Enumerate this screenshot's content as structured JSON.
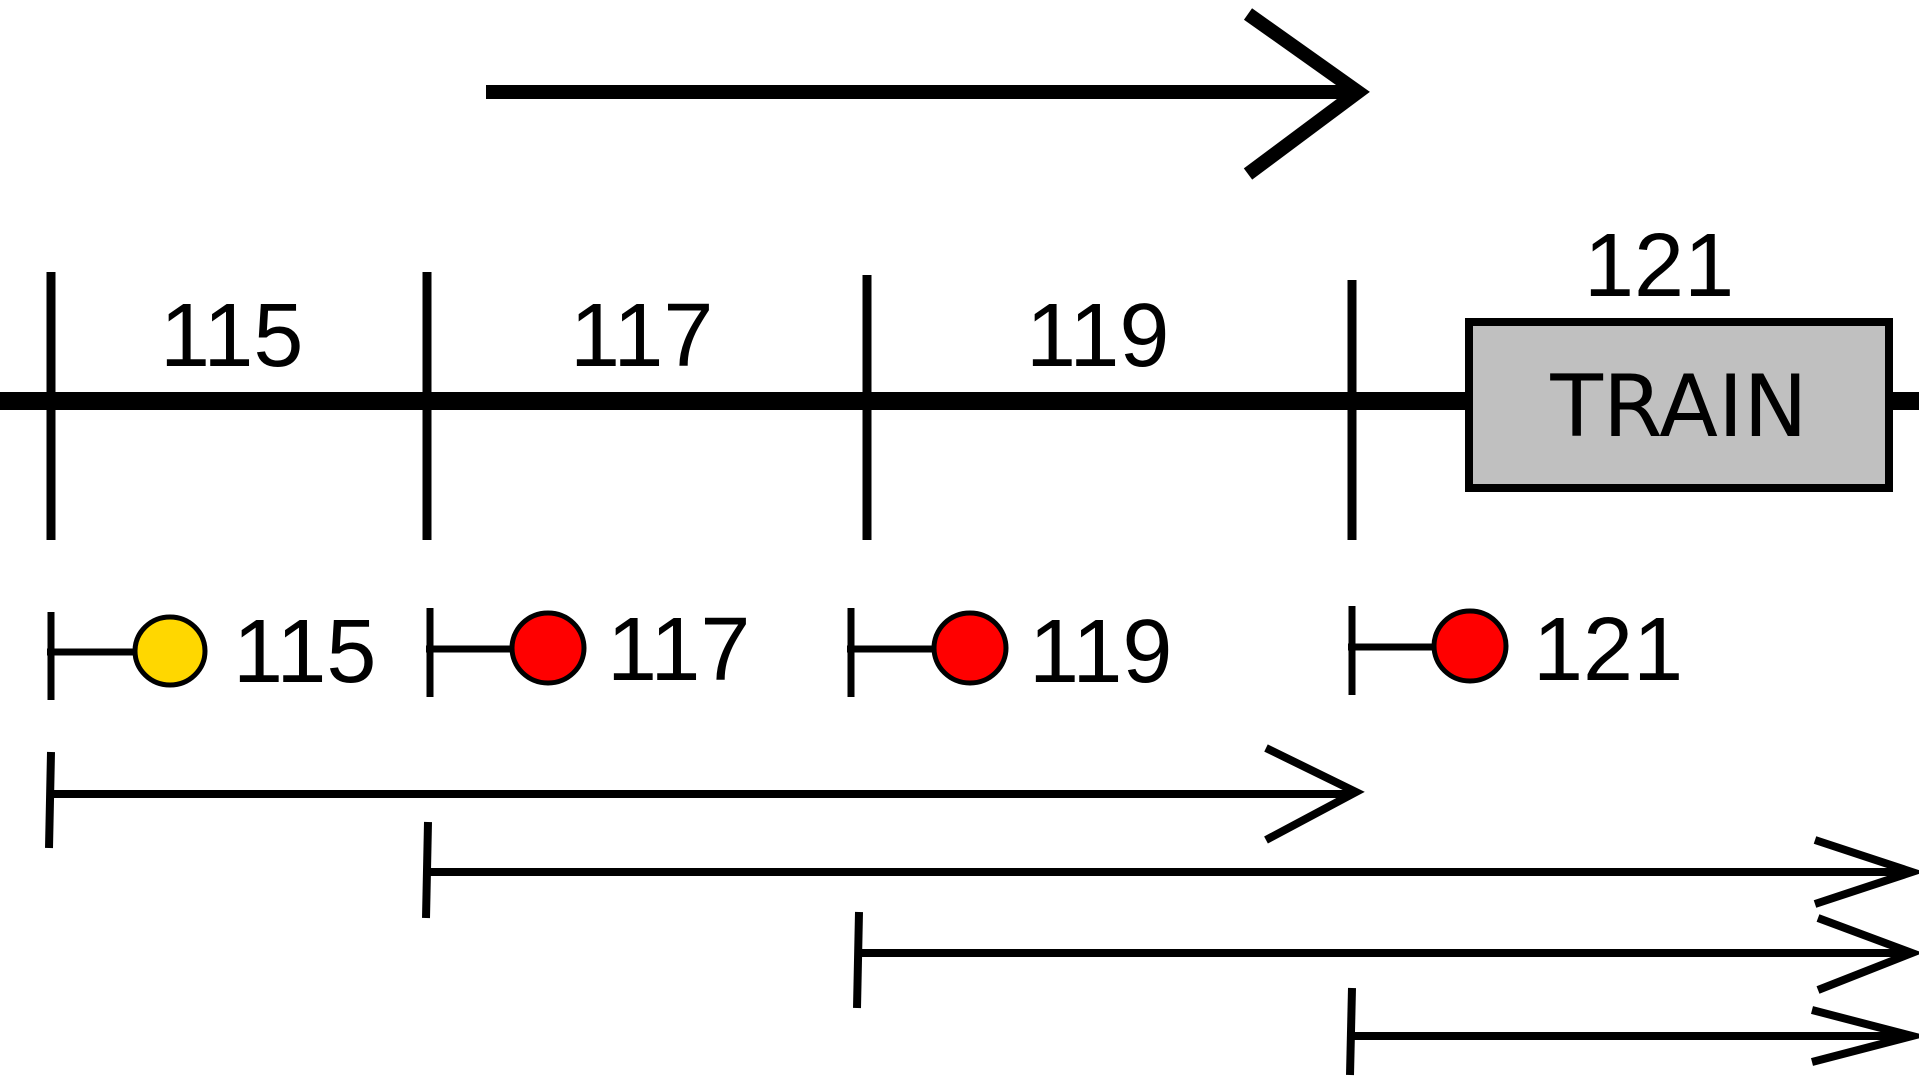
{
  "blocks": [
    {
      "label": "115"
    },
    {
      "label": "117"
    },
    {
      "label": "119"
    },
    {
      "label": "121"
    }
  ],
  "train": {
    "label": "TRAIN",
    "fill": "#c0c0c0"
  },
  "signals": [
    {
      "label": "115",
      "aspect": "yellow",
      "color": "#ffd700"
    },
    {
      "label": "117",
      "aspect": "red",
      "color": "#ff0000"
    },
    {
      "label": "119",
      "aspect": "red",
      "color": "#ff0000"
    },
    {
      "label": "121",
      "aspect": "red",
      "color": "#ff0000"
    }
  ],
  "direction_icon": "right-arrow-icon"
}
